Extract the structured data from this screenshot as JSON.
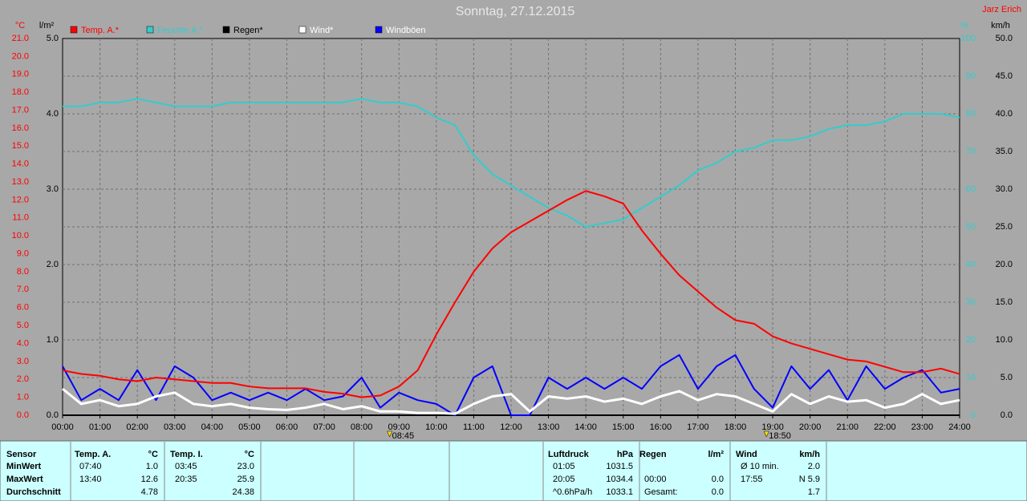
{
  "chart_data": {
    "type": "line",
    "title": "Sonntag, 27.12.2015",
    "author": "Jarz Erich",
    "axis_units": {
      "y": "°C",
      "y2": "l/m²",
      "y3": "%",
      "y4": "km/h"
    },
    "x": [
      0,
      0.5,
      1,
      1.5,
      2,
      2.5,
      3,
      3.5,
      4,
      4.5,
      5,
      5.5,
      6,
      6.5,
      7,
      7.5,
      8,
      8.5,
      9,
      9.5,
      10,
      10.5,
      11,
      11.5,
      12,
      12.5,
      13,
      13.5,
      14,
      14.5,
      15,
      15.5,
      16,
      16.5,
      17,
      17.5,
      18,
      18.5,
      19,
      19.5,
      20,
      20.5,
      21,
      21.5,
      22,
      22.5,
      23,
      23.5,
      24
    ],
    "xlim": [
      0,
      24
    ],
    "xticks": [
      {
        "value": 0,
        "label": "00:00"
      },
      {
        "value": 1,
        "label": "01:00"
      },
      {
        "value": 2,
        "label": "02:00"
      },
      {
        "value": 3,
        "label": "03:00"
      },
      {
        "value": 4,
        "label": "04:00"
      },
      {
        "value": 5,
        "label": "05:00"
      },
      {
        "value": 6,
        "label": "06:00"
      },
      {
        "value": 7,
        "label": "07:00"
      },
      {
        "value": 8,
        "label": "08:00"
      },
      {
        "value": 9,
        "label": "09:00"
      },
      {
        "value": 10,
        "label": "10:00"
      },
      {
        "value": 11,
        "label": "11:00"
      },
      {
        "value": 12,
        "label": "12:00"
      },
      {
        "value": 13,
        "label": "13:00"
      },
      {
        "value": 14,
        "label": "14:00"
      },
      {
        "value": 15,
        "label": "15:00"
      },
      {
        "value": 16,
        "label": "16:00"
      },
      {
        "value": 17,
        "label": "17:00"
      },
      {
        "value": 18,
        "label": "18:00"
      },
      {
        "value": 19,
        "label": "19:00"
      },
      {
        "value": 20,
        "label": "20:00"
      },
      {
        "value": 21,
        "label": "21:00"
      },
      {
        "value": 22,
        "label": "22:00"
      },
      {
        "value": 23,
        "label": "23:00"
      },
      {
        "value": 24,
        "label": "24:00"
      }
    ],
    "ylim": [
      0,
      21
    ],
    "yticks": [
      {
        "value": 0,
        "label": "0.0"
      },
      {
        "value": 1,
        "label": "1.0"
      },
      {
        "value": 2,
        "label": "2.0"
      },
      {
        "value": 3,
        "label": "3.0"
      },
      {
        "value": 4,
        "label": "4.0"
      },
      {
        "value": 5,
        "label": "5.0"
      },
      {
        "value": 6,
        "label": "6.0"
      },
      {
        "value": 7,
        "label": "7.0"
      },
      {
        "value": 8,
        "label": "8.0"
      },
      {
        "value": 9,
        "label": "9.0"
      },
      {
        "value": 10,
        "label": "10.0"
      },
      {
        "value": 11,
        "label": "11.0"
      },
      {
        "value": 12,
        "label": "12.0"
      },
      {
        "value": 13,
        "label": "13.0"
      },
      {
        "value": 14,
        "label": "14.0"
      },
      {
        "value": 15,
        "label": "15.0"
      },
      {
        "value": 16,
        "label": "16.0"
      },
      {
        "value": 17,
        "label": "17.0"
      },
      {
        "value": 18,
        "label": "18.0"
      },
      {
        "value": 19,
        "label": "19.0"
      },
      {
        "value": 20,
        "label": "20.0"
      },
      {
        "value": 21,
        "label": "21.0"
      }
    ],
    "y2lim": [
      0,
      5
    ],
    "y2ticks": [
      {
        "value": 0,
        "label": "0.0"
      },
      {
        "value": 1,
        "label": "1.0"
      },
      {
        "value": 2,
        "label": "2.0"
      },
      {
        "value": 3,
        "label": "3.0"
      },
      {
        "value": 4,
        "label": "4.0"
      },
      {
        "value": 5,
        "label": "5.0"
      }
    ],
    "y3lim": [
      0,
      100
    ],
    "y3ticks": [
      0,
      10,
      20,
      30,
      40,
      50,
      60,
      70,
      80,
      90,
      100
    ],
    "y4lim": [
      0,
      50
    ],
    "y4ticks": [
      {
        "value": 0,
        "label": "0.0"
      },
      {
        "value": 5,
        "label": "5.0"
      },
      {
        "value": 10,
        "label": "10.0"
      },
      {
        "value": 15,
        "label": "15.0"
      },
      {
        "value": 20,
        "label": "20.0"
      },
      {
        "value": 25,
        "label": "25.0"
      },
      {
        "value": 30,
        "label": "30.0"
      },
      {
        "value": 35,
        "label": "35.0"
      },
      {
        "value": 40,
        "label": "40.0"
      },
      {
        "value": 45,
        "label": "45.0"
      },
      {
        "value": 50,
        "label": "50.0"
      }
    ],
    "grid": true,
    "series": [
      {
        "name": "Temp. A.*",
        "color": "#ff0000",
        "axis": "y",
        "values": [
          2.5,
          2.3,
          2.2,
          2.0,
          1.9,
          2.1,
          2.0,
          1.9,
          1.8,
          1.8,
          1.6,
          1.5,
          1.5,
          1.5,
          1.3,
          1.2,
          1.0,
          1.1,
          1.6,
          2.5,
          4.5,
          6.3,
          8.0,
          9.3,
          10.2,
          10.8,
          11.4,
          12.0,
          12.5,
          12.2,
          11.8,
          10.3,
          9.0,
          7.8,
          6.9,
          6.0,
          5.3,
          5.1,
          4.4,
          4.0,
          3.7,
          3.4,
          3.1,
          3.0,
          2.7,
          2.4,
          2.4,
          2.6,
          2.3
        ]
      },
      {
        "name": "Feuchte A.*",
        "color": "#33cccc",
        "axis": "y3",
        "values": [
          82,
          82,
          83,
          83,
          84,
          83,
          82,
          82,
          82,
          83,
          83,
          83,
          83,
          83,
          83,
          83,
          84,
          83,
          83,
          82,
          79,
          77,
          69,
          64,
          61,
          58,
          55,
          53,
          50,
          51,
          52,
          55,
          58,
          61,
          65,
          67,
          70,
          71,
          73,
          73,
          74,
          76,
          77,
          77,
          78,
          80,
          80,
          80,
          79
        ]
      },
      {
        "name": "Regen*",
        "color": "#000000",
        "axis": "y2",
        "values": [
          0,
          0,
          0,
          0,
          0,
          0,
          0,
          0,
          0,
          0,
          0,
          0,
          0,
          0,
          0,
          0,
          0,
          0,
          0,
          0,
          0,
          0,
          0,
          0,
          0,
          0,
          0,
          0,
          0,
          0,
          0,
          0,
          0,
          0,
          0,
          0,
          0,
          0,
          0,
          0,
          0,
          0,
          0,
          0,
          0,
          0,
          0,
          0,
          0
        ]
      },
      {
        "name": "Wind*",
        "color": "#ffffff",
        "axis": "y4",
        "values": [
          3.5,
          1.5,
          2,
          1.2,
          1.5,
          2.5,
          3,
          1.5,
          1.2,
          1.5,
          1,
          0.8,
          0.7,
          1,
          1.5,
          0.8,
          1.2,
          0.5,
          0.5,
          0.3,
          0.3,
          0.2,
          1.5,
          2.5,
          2.8,
          0.5,
          2.5,
          2.2,
          2.5,
          1.8,
          2.2,
          1.5,
          2.5,
          3.2,
          2,
          2.8,
          2.5,
          1.5,
          0.5,
          2.8,
          1.5,
          2.5,
          1.8,
          2,
          1,
          1.5,
          2.8,
          1.5,
          2
        ]
      },
      {
        "name": "Windböen",
        "color": "#0000ff",
        "axis": "y4",
        "values": [
          6.5,
          2,
          3.5,
          2,
          6,
          2,
          6.5,
          5,
          2,
          3,
          2,
          3,
          2,
          3.5,
          2,
          2.5,
          5,
          1,
          3,
          2,
          1.5,
          0,
          5,
          6.5,
          0,
          0,
          5,
          3.5,
          5,
          3.5,
          5,
          3.5,
          6.5,
          8,
          3.5,
          6.5,
          8,
          3.5,
          1,
          6.5,
          3.5,
          6,
          2,
          6.5,
          3.5,
          5,
          6,
          3,
          3.5
        ]
      }
    ],
    "annotations": [
      {
        "x": 8.75,
        "label": "08:45"
      },
      {
        "x": 18.833,
        "label": "18:50"
      }
    ]
  },
  "stats": {
    "row_labels": [
      "Sensor",
      "MinWert",
      "MaxWert",
      "Durchschnitt"
    ],
    "panels": [
      {
        "name": "Temp. A.",
        "unit": "°C",
        "rows": [
          {
            "time": "07:40",
            "value": "1.0"
          },
          {
            "time": "13:40",
            "value": "12.6"
          },
          {
            "value": "4.78"
          }
        ]
      },
      {
        "name": "Temp. I.",
        "unit": "°C",
        "rows": [
          {
            "time": "03:45",
            "value": "23.0"
          },
          {
            "time": "20:35",
            "value": "25.9"
          },
          {
            "value": "24.38"
          }
        ]
      },
      {
        "name": "Luftdruck",
        "unit": "hPa",
        "rows": [
          {
            "time": "01:05",
            "value": "1031.5"
          },
          {
            "time": "20:05",
            "value": "1034.4"
          },
          {
            "time": "^0.6hPa/h",
            "value": "1033.1"
          }
        ]
      },
      {
        "name": "Regen",
        "unit": "l/m²",
        "rows": [
          null,
          {
            "time": "00:00",
            "value": "0.0"
          },
          {
            "time": "Gesamt:",
            "value": "0.0"
          }
        ]
      },
      {
        "name": "Wind",
        "unit": "km/h",
        "rows": [
          {
            "time": "Ø 10 min.",
            "value": "2.0"
          },
          {
            "time": "17:55",
            "value": "N 5.9"
          },
          {
            "value": "1.7"
          }
        ]
      }
    ]
  }
}
